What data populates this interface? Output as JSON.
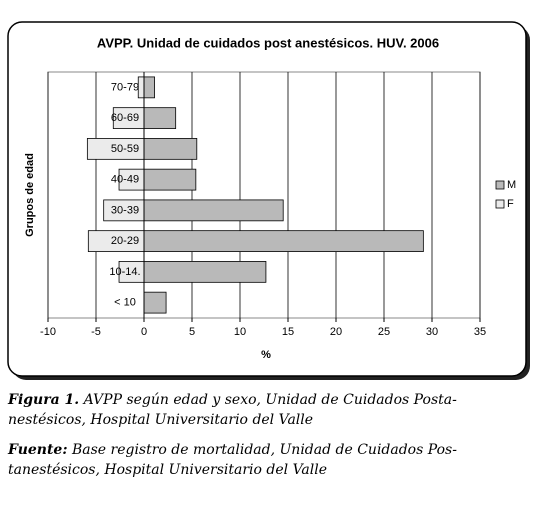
{
  "chart_data": {
    "type": "bar",
    "orientation": "horizontal",
    "title": "AVPP. Unidad de cuidados post anestésicos. HUV. 2006",
    "x_label": "%",
    "y_label": "Grupos de edad",
    "categories": [
      "70-79",
      "60-69",
      "50-59",
      "40-49",
      "30-39",
      "20-29",
      "10-14.",
      "< 10"
    ],
    "series": [
      {
        "name": "M",
        "color": "#b9b9b9",
        "values": [
          1.1,
          3.3,
          5.5,
          5.4,
          14.5,
          29.1,
          12.7,
          2.3
        ]
      },
      {
        "name": "F",
        "color": "#ebebeb",
        "values": [
          -0.6,
          -3.2,
          -5.9,
          -2.6,
          -4.2,
          -5.8,
          -2.6,
          0
        ]
      }
    ],
    "xlim": [
      -10,
      35
    ],
    "xticks": [
      -10,
      -5,
      0,
      5,
      10,
      15,
      20,
      25,
      30,
      35
    ],
    "grid": true,
    "legend": "right"
  },
  "caption": {
    "label": "Figura 1.",
    "lines": [
      "AVPP según edad y sexo, Unidad de Cuidados Posta-",
      "nestésicos, Hospital Universitario del Valle"
    ]
  },
  "source": {
    "label": "Fuente:",
    "lines": [
      "Base registro de mortalidad, Unidad de Cuidados Pos-",
      "tanestésicos, Hospital Universitario del Valle"
    ]
  }
}
